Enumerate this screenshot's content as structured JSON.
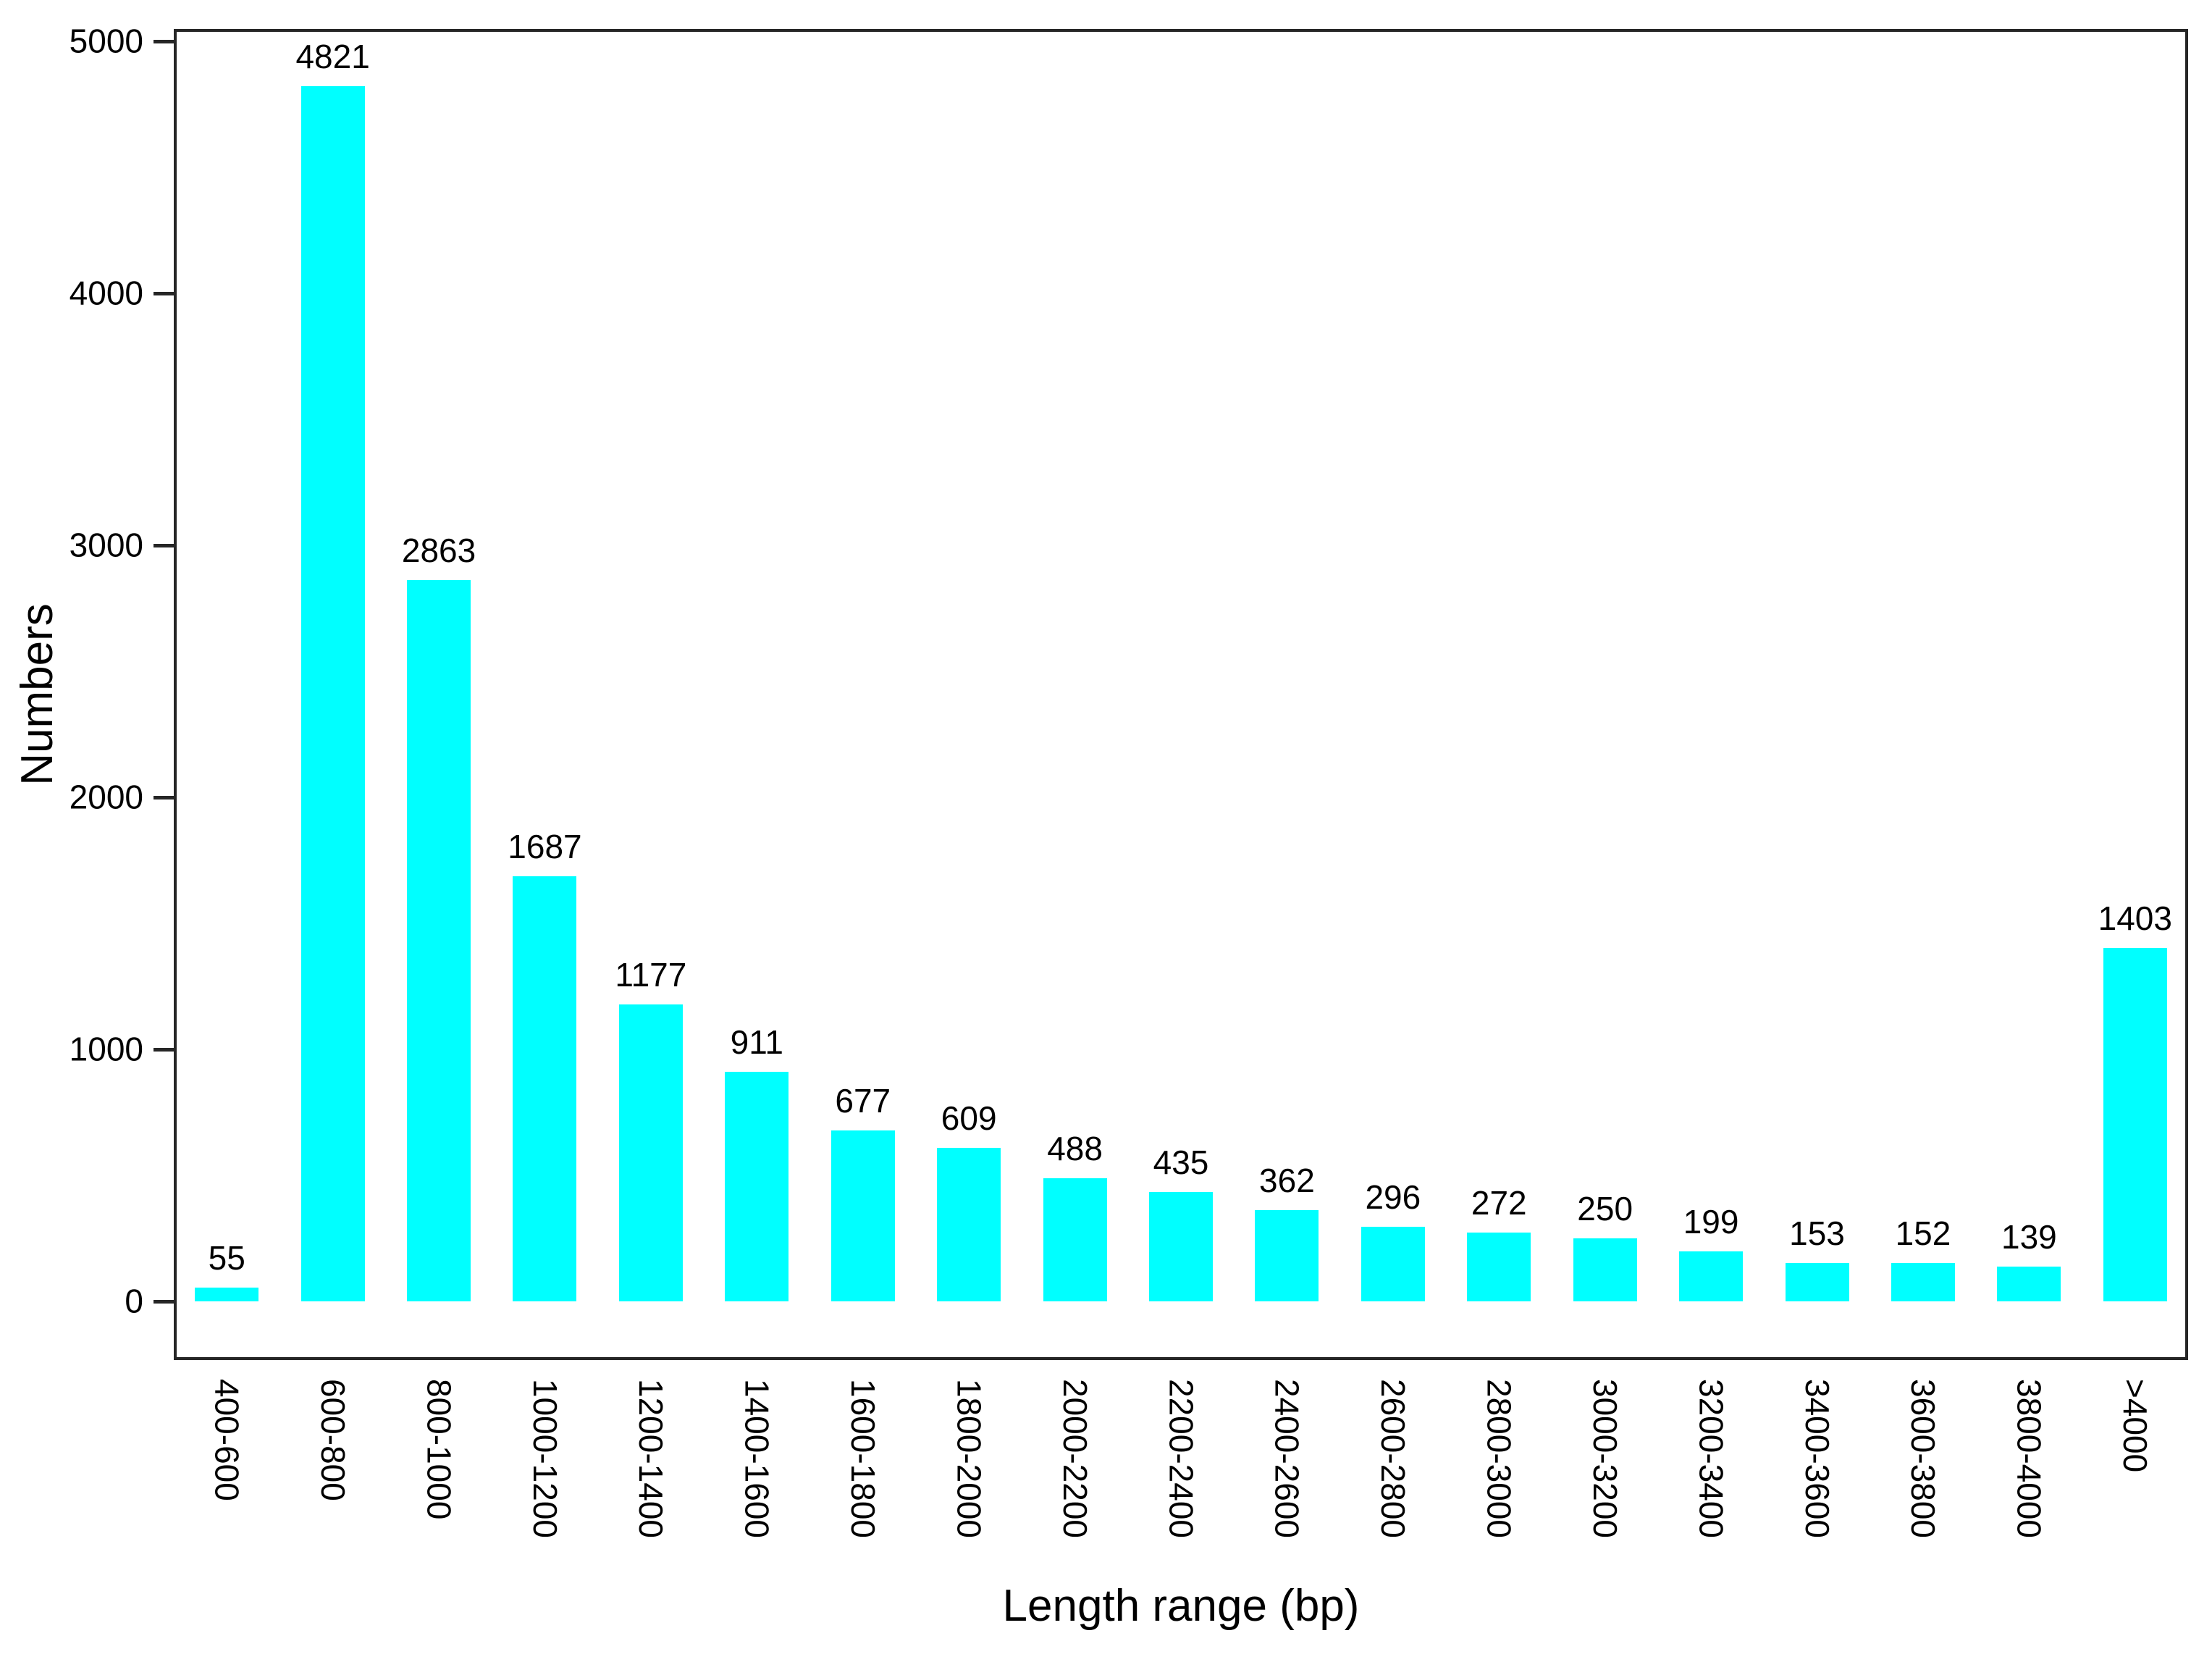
{
  "chart_data": {
    "type": "bar",
    "title": "",
    "xlabel": "Length range (bp)",
    "ylabel": "Numbers",
    "categories": [
      "400-600",
      "600-800",
      "800-1000",
      "1000-1200",
      "1200-1400",
      "1400-1600",
      "1600-1800",
      "1800-2000",
      "2000-2200",
      "2200-2400",
      "2400-2600",
      "2600-2800",
      "2800-3000",
      "3000-3200",
      "3200-3400",
      "3400-3600",
      "3600-3800",
      "3800-4000",
      ">4000"
    ],
    "values": [
      55,
      4821,
      2863,
      1687,
      1177,
      911,
      677,
      609,
      488,
      435,
      362,
      296,
      272,
      250,
      199,
      153,
      152,
      139,
      1403
    ],
    "value_labels": [
      "55",
      "4821",
      "2863",
      "1687",
      "1177",
      "911",
      "677",
      "609",
      "488",
      "435",
      "362",
      "296",
      "272",
      "250",
      "199",
      "153",
      "152",
      "139",
      "1403"
    ],
    "yticks": [
      0,
      1000,
      2000,
      3000,
      4000,
      5000
    ],
    "ytick_labels": [
      "0",
      "1000",
      "2000",
      "3000",
      "4000",
      "5000"
    ],
    "ylim": [
      0,
      5000
    ],
    "grid": false,
    "legend": null,
    "bar_color": "#00FFFF",
    "axis_color": "#262626",
    "text_color": "#000000",
    "x_tick_label_rotation_deg": 90,
    "value_labels_shown": true
  }
}
